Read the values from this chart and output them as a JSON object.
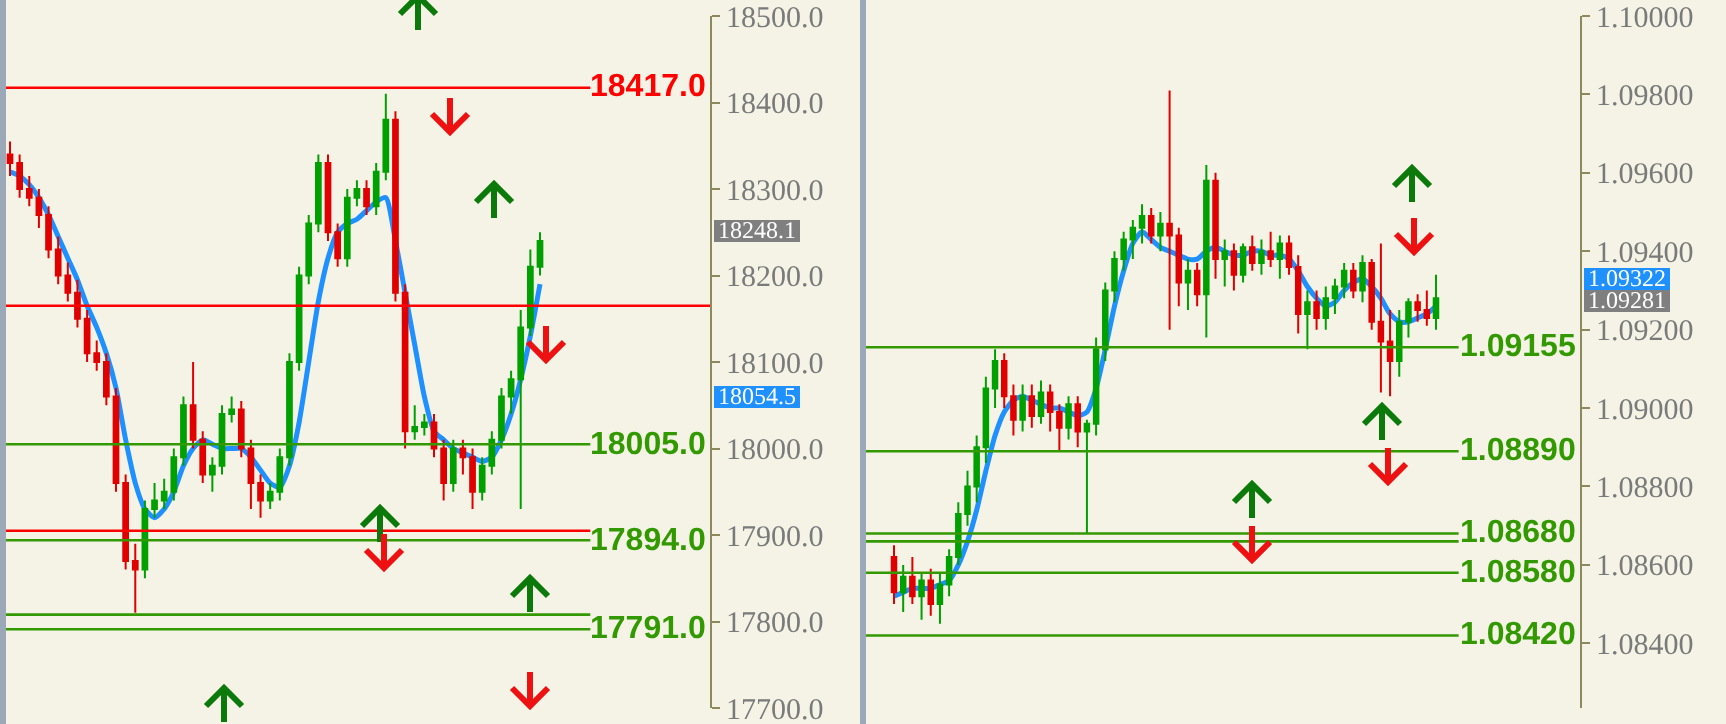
{
  "chart_data": [
    {
      "type": "candlestick",
      "tick_labels": "y",
      "categories": [
        null,
        null,
        null,
        null,
        null,
        null,
        null,
        null,
        null,
        null,
        null,
        null,
        null,
        null,
        null,
        null,
        null,
        null,
        null,
        null,
        null,
        null,
        null,
        null,
        null,
        null,
        null,
        null,
        null,
        null,
        null,
        null,
        null,
        null,
        null,
        null,
        null,
        null,
        null,
        null,
        null,
        null,
        null,
        null,
        null,
        null,
        null,
        null,
        null,
        null,
        null,
        null,
        null,
        null,
        null,
        null
      ],
      "ohlc": [
        [
          18340,
          18355,
          18315,
          18330
        ],
        [
          18330,
          18340,
          18290,
          18300
        ],
        [
          18300,
          18315,
          18280,
          18290
        ],
        [
          18290,
          18300,
          18255,
          18270
        ],
        [
          18270,
          18280,
          18220,
          18230
        ],
        [
          18230,
          18245,
          18190,
          18200
        ],
        [
          18200,
          18215,
          18170,
          18180
        ],
        [
          18180,
          18195,
          18140,
          18150
        ],
        [
          18150,
          18160,
          18100,
          18110
        ],
        [
          18110,
          18125,
          18090,
          18100
        ],
        [
          18100,
          18110,
          18050,
          18060
        ],
        [
          18060,
          18070,
          17950,
          17960
        ],
        [
          17960,
          17970,
          17860,
          17870
        ],
        [
          17870,
          17890,
          17810,
          17860
        ],
        [
          17860,
          17940,
          17850,
          17930
        ],
        [
          17930,
          17960,
          17920,
          17940
        ],
        [
          17940,
          17965,
          17930,
          17950
        ],
        [
          17950,
          18000,
          17940,
          17990
        ],
        [
          17990,
          18060,
          17980,
          18050
        ],
        [
          18050,
          18100,
          18000,
          18010
        ],
        [
          18010,
          18020,
          17960,
          17970
        ],
        [
          17970,
          17990,
          17950,
          17980
        ],
        [
          17980,
          18050,
          17970,
          18040
        ],
        [
          18040,
          18060,
          18030,
          18045
        ],
        [
          18045,
          18055,
          17990,
          18000
        ],
        [
          18000,
          18010,
          17930,
          17960
        ],
        [
          17960,
          17970,
          17920,
          17940
        ],
        [
          17940,
          17960,
          17930,
          17950
        ],
        [
          17950,
          18000,
          17940,
          17990
        ],
        [
          17990,
          18110,
          17980,
          18100
        ],
        [
          18100,
          18210,
          18090,
          18200
        ],
        [
          18200,
          18270,
          18190,
          18260
        ],
        [
          18260,
          18340,
          18250,
          18330
        ],
        [
          18330,
          18340,
          18240,
          18250
        ],
        [
          18250,
          18260,
          18210,
          18220
        ],
        [
          18220,
          18300,
          18210,
          18290
        ],
        [
          18290,
          18310,
          18280,
          18300
        ],
        [
          18300,
          18310,
          18270,
          18280
        ],
        [
          18280,
          18330,
          18270,
          18320
        ],
        [
          18320,
          18410,
          18310,
          18380
        ],
        [
          18380,
          18390,
          18170,
          18180
        ],
        [
          18180,
          18190,
          18000,
          18020
        ],
        [
          18020,
          18050,
          18010,
          18025
        ],
        [
          18025,
          18040,
          18015,
          18030
        ],
        [
          18030,
          18040,
          17990,
          18000
        ],
        [
          18000,
          18010,
          17940,
          17960
        ],
        [
          17960,
          18010,
          17950,
          18000
        ],
        [
          18000,
          18010,
          17970,
          17990
        ],
        [
          17990,
          18000,
          17930,
          17950
        ],
        [
          17950,
          17990,
          17940,
          17980
        ],
        [
          17980,
          18020,
          17970,
          18010
        ],
        [
          18010,
          18070,
          18000,
          18060
        ],
        [
          18060,
          18090,
          18040,
          18080
        ],
        [
          18080,
          18160,
          17930,
          18140
        ],
        [
          18140,
          18230,
          18130,
          18210
        ],
        [
          18210,
          18250,
          18200,
          18240
        ]
      ],
      "series": [
        {
          "type": "line",
          "color": "#1e90ff",
          "values": [
            18320,
            18315,
            18305,
            18290,
            18270,
            18245,
            18220,
            18195,
            18165,
            18140,
            18110,
            18070,
            18010,
            17960,
            17930,
            17920,
            17930,
            17950,
            17980,
            18000,
            18010,
            18005,
            18000,
            18000,
            18000,
            17990,
            17975,
            17960,
            17955,
            17980,
            18030,
            18100,
            18170,
            18220,
            18250,
            18260,
            18265,
            18275,
            18285,
            18290,
            18240,
            18180,
            18120,
            18060,
            18020,
            18010,
            18000,
            17995,
            17990,
            17985,
            17990,
            18010,
            18040,
            18080,
            18130,
            18190
          ]
        }
      ],
      "ylim": [
        17700,
        18500
      ],
      "yticks": [
        {
          "value": 17700,
          "label": "17700.0"
        },
        {
          "value": 17800,
          "label": "17800.0"
        },
        {
          "value": 17900,
          "label": "17900.0"
        },
        {
          "value": 18000,
          "label": "18000.0"
        },
        {
          "value": 18100,
          "label": "18100.0"
        },
        {
          "value": 18200,
          "label": "18200.0"
        },
        {
          "value": 18300,
          "label": "18300.0"
        },
        {
          "value": 18400,
          "label": "18400.0"
        },
        {
          "value": 18500,
          "label": "18500.0"
        }
      ],
      "ref_lines": [
        {
          "axis": "y",
          "value": 18417,
          "label": "18417.0",
          "color": "#ff0000"
        },
        {
          "axis": "y",
          "value": 18165,
          "color": "#ff0000"
        },
        {
          "axis": "y",
          "value": 17905,
          "color": "#ff0000"
        },
        {
          "axis": "y",
          "value": 18005,
          "label": "18005.0",
          "color": "#339900"
        },
        {
          "axis": "y",
          "value": 17894,
          "label": "17894.0",
          "color": "#339900"
        },
        {
          "axis": "y",
          "value": 17808,
          "color": "#339900"
        },
        {
          "axis": "y",
          "value": 17791,
          "label": "17791.0",
          "color": "#339900"
        }
      ],
      "annotations": [
        "18248.1",
        "18054.5"
      ]
    },
    {
      "type": "candlestick",
      "tick_labels": "y",
      "categories": [
        null,
        null,
        null,
        null,
        null,
        null,
        null,
        null,
        null,
        null,
        null,
        null,
        null,
        null,
        null,
        null,
        null,
        null,
        null,
        null,
        null,
        null,
        null,
        null,
        null,
        null,
        null,
        null,
        null,
        null,
        null,
        null,
        null,
        null,
        null,
        null,
        null,
        null,
        null,
        null,
        null,
        null,
        null,
        null,
        null,
        null,
        null,
        null,
        null,
        null,
        null,
        null,
        null,
        null,
        null,
        null,
        null,
        null,
        null,
        null
      ],
      "ohlc": [
        [
          1.0862,
          1.0865,
          1.085,
          1.0853
        ],
        [
          1.0853,
          1.086,
          1.0848,
          1.0857
        ],
        [
          1.0857,
          1.0862,
          1.085,
          1.0852
        ],
        [
          1.0852,
          1.0858,
          1.0846,
          1.0856
        ],
        [
          1.0856,
          1.0859,
          1.0847,
          1.085
        ],
        [
          1.085,
          1.0858,
          1.0845,
          1.0855
        ],
        [
          1.0855,
          1.0864,
          1.0852,
          1.0862
        ],
        [
          1.0862,
          1.0876,
          1.086,
          1.0873
        ],
        [
          1.0873,
          1.0884,
          1.087,
          1.088
        ],
        [
          1.088,
          1.0893,
          1.0876,
          1.089
        ],
        [
          1.089,
          1.0908,
          1.0886,
          1.0905
        ],
        [
          1.0905,
          1.0915,
          1.09,
          1.0912
        ],
        [
          1.0912,
          1.0914,
          1.09,
          1.0903
        ],
        [
          1.0903,
          1.0906,
          1.0893,
          1.0897
        ],
        [
          1.0897,
          1.0906,
          1.0894,
          1.0903
        ],
        [
          1.0903,
          1.0906,
          1.0895,
          1.0898
        ],
        [
          1.0898,
          1.0907,
          1.0896,
          1.0904
        ],
        [
          1.0904,
          1.0906,
          1.0894,
          1.0899
        ],
        [
          1.0899,
          1.0901,
          1.0889,
          1.0895
        ],
        [
          1.0895,
          1.0903,
          1.0892,
          1.0901
        ],
        [
          1.0901,
          1.0903,
          1.089,
          1.0894
        ],
        [
          1.0894,
          1.0897,
          1.0868,
          1.0896
        ],
        [
          1.0896,
          1.0918,
          1.0893,
          1.0915
        ],
        [
          1.0915,
          1.0932,
          1.0912,
          1.093
        ],
        [
          1.093,
          1.094,
          1.0927,
          1.0938
        ],
        [
          1.0938,
          1.0945,
          1.0935,
          1.0943
        ],
        [
          1.0943,
          1.0948,
          1.0938,
          1.0946
        ],
        [
          1.0946,
          1.0952,
          1.0942,
          1.0949
        ],
        [
          1.0949,
          1.0951,
          1.0942,
          1.0944
        ],
        [
          1.0944,
          1.095,
          1.094,
          1.0947
        ],
        [
          1.0947,
          1.0981,
          1.092,
          1.0944
        ],
        [
          1.0944,
          1.0946,
          1.0926,
          1.0932
        ],
        [
          1.0932,
          1.0938,
          1.0925,
          1.0935
        ],
        [
          1.0935,
          1.0937,
          1.0926,
          1.0929
        ],
        [
          1.0929,
          1.0962,
          1.0918,
          1.0958
        ],
        [
          1.0958,
          1.096,
          1.0933,
          1.0938
        ],
        [
          1.0938,
          1.0943,
          1.0931,
          1.094
        ],
        [
          1.094,
          1.0942,
          1.093,
          1.0934
        ],
        [
          1.0934,
          1.0942,
          1.0932,
          1.0941
        ],
        [
          1.0941,
          1.0944,
          1.0935,
          1.0937
        ],
        [
          1.0937,
          1.0943,
          1.0934,
          1.094
        ],
        [
          1.094,
          1.0945,
          1.0936,
          1.0938
        ],
        [
          1.0938,
          1.0944,
          1.0933,
          1.0942
        ],
        [
          1.0942,
          1.0944,
          1.0934,
          1.0936
        ],
        [
          1.0936,
          1.0939,
          1.0919,
          1.0924
        ],
        [
          1.0924,
          1.093,
          1.0915,
          1.0927
        ],
        [
          1.0927,
          1.093,
          1.092,
          1.0923
        ],
        [
          1.0923,
          1.0931,
          1.092,
          1.0928
        ],
        [
          1.0928,
          1.0933,
          1.0924,
          1.0931
        ],
        [
          1.0931,
          1.0937,
          1.0928,
          1.0935
        ],
        [
          1.0935,
          1.0937,
          1.0928,
          1.093
        ],
        [
          1.093,
          1.0939,
          1.0927,
          1.0937
        ],
        [
          1.0937,
          1.0938,
          1.092,
          1.0922
        ],
        [
          1.0922,
          1.0942,
          1.0904,
          1.0917
        ],
        [
          1.0917,
          1.0925,
          1.0903,
          1.0912
        ],
        [
          1.0912,
          1.0925,
          1.0908,
          1.0922
        ],
        [
          1.0922,
          1.0928,
          1.0918,
          1.0927
        ],
        [
          1.0927,
          1.0929,
          1.0922,
          1.0925
        ],
        [
          1.0925,
          1.093,
          1.0921,
          1.0923
        ],
        [
          1.0923,
          1.0934,
          1.092,
          1.0928
        ]
      ],
      "series": [
        {
          "type": "line",
          "color": "#1e90ff",
          "values": [
            1.0852,
            1.0853,
            1.0854,
            1.0854,
            1.0854,
            1.0855,
            1.0856,
            1.086,
            1.0866,
            1.0874,
            1.0884,
            1.0893,
            1.0899,
            1.0902,
            1.0903,
            1.0902,
            1.0901,
            1.09,
            1.09,
            1.0899,
            1.0898,
            1.0899,
            1.0905,
            1.0915,
            1.0926,
            1.0935,
            1.0942,
            1.0945,
            1.0943,
            1.0941,
            1.094,
            1.0939,
            1.0938,
            1.0938,
            1.094,
            1.0941,
            1.094,
            1.0939,
            1.0939,
            1.094,
            1.094,
            1.0939,
            1.0939,
            1.0938,
            1.0935,
            1.0931,
            1.0928,
            1.0926,
            1.0927,
            1.093,
            1.0932,
            1.0933,
            1.0931,
            1.0928,
            1.0924,
            1.0922,
            1.0922,
            1.0923,
            1.0924,
            1.0926
          ]
        }
      ],
      "ylim": [
        1.08235,
        1.1
      ],
      "yticks": [
        {
          "value": 1.084,
          "label": "1.08400"
        },
        {
          "value": 1.086,
          "label": "1.08600"
        },
        {
          "value": 1.088,
          "label": "1.08800"
        },
        {
          "value": 1.09,
          "label": "1.09000"
        },
        {
          "value": 1.092,
          "label": "1.09200"
        },
        {
          "value": 1.094,
          "label": "1.09400"
        },
        {
          "value": 1.096,
          "label": "1.09600"
        },
        {
          "value": 1.098,
          "label": "1.09800"
        },
        {
          "value": 1.1,
          "label": "1.10000"
        }
      ],
      "ref_lines": [
        {
          "axis": "y",
          "value": 1.09155,
          "label": "1.09155",
          "color": "#339900"
        },
        {
          "axis": "y",
          "value": 1.0889,
          "label": "1.08890",
          "color": "#339900"
        },
        {
          "axis": "y",
          "value": 1.0868,
          "label": "1.08680",
          "color": "#339900"
        },
        {
          "axis": "y",
          "value": 1.0866,
          "color": "#339900"
        },
        {
          "axis": "y",
          "value": 1.0858,
          "label": "1.08580",
          "color": "#339900"
        },
        {
          "axis": "y",
          "value": 1.0842,
          "label": "1.08420",
          "color": "#339900"
        }
      ],
      "annotations": [
        "1.09322",
        "1.09281"
      ]
    }
  ]
}
